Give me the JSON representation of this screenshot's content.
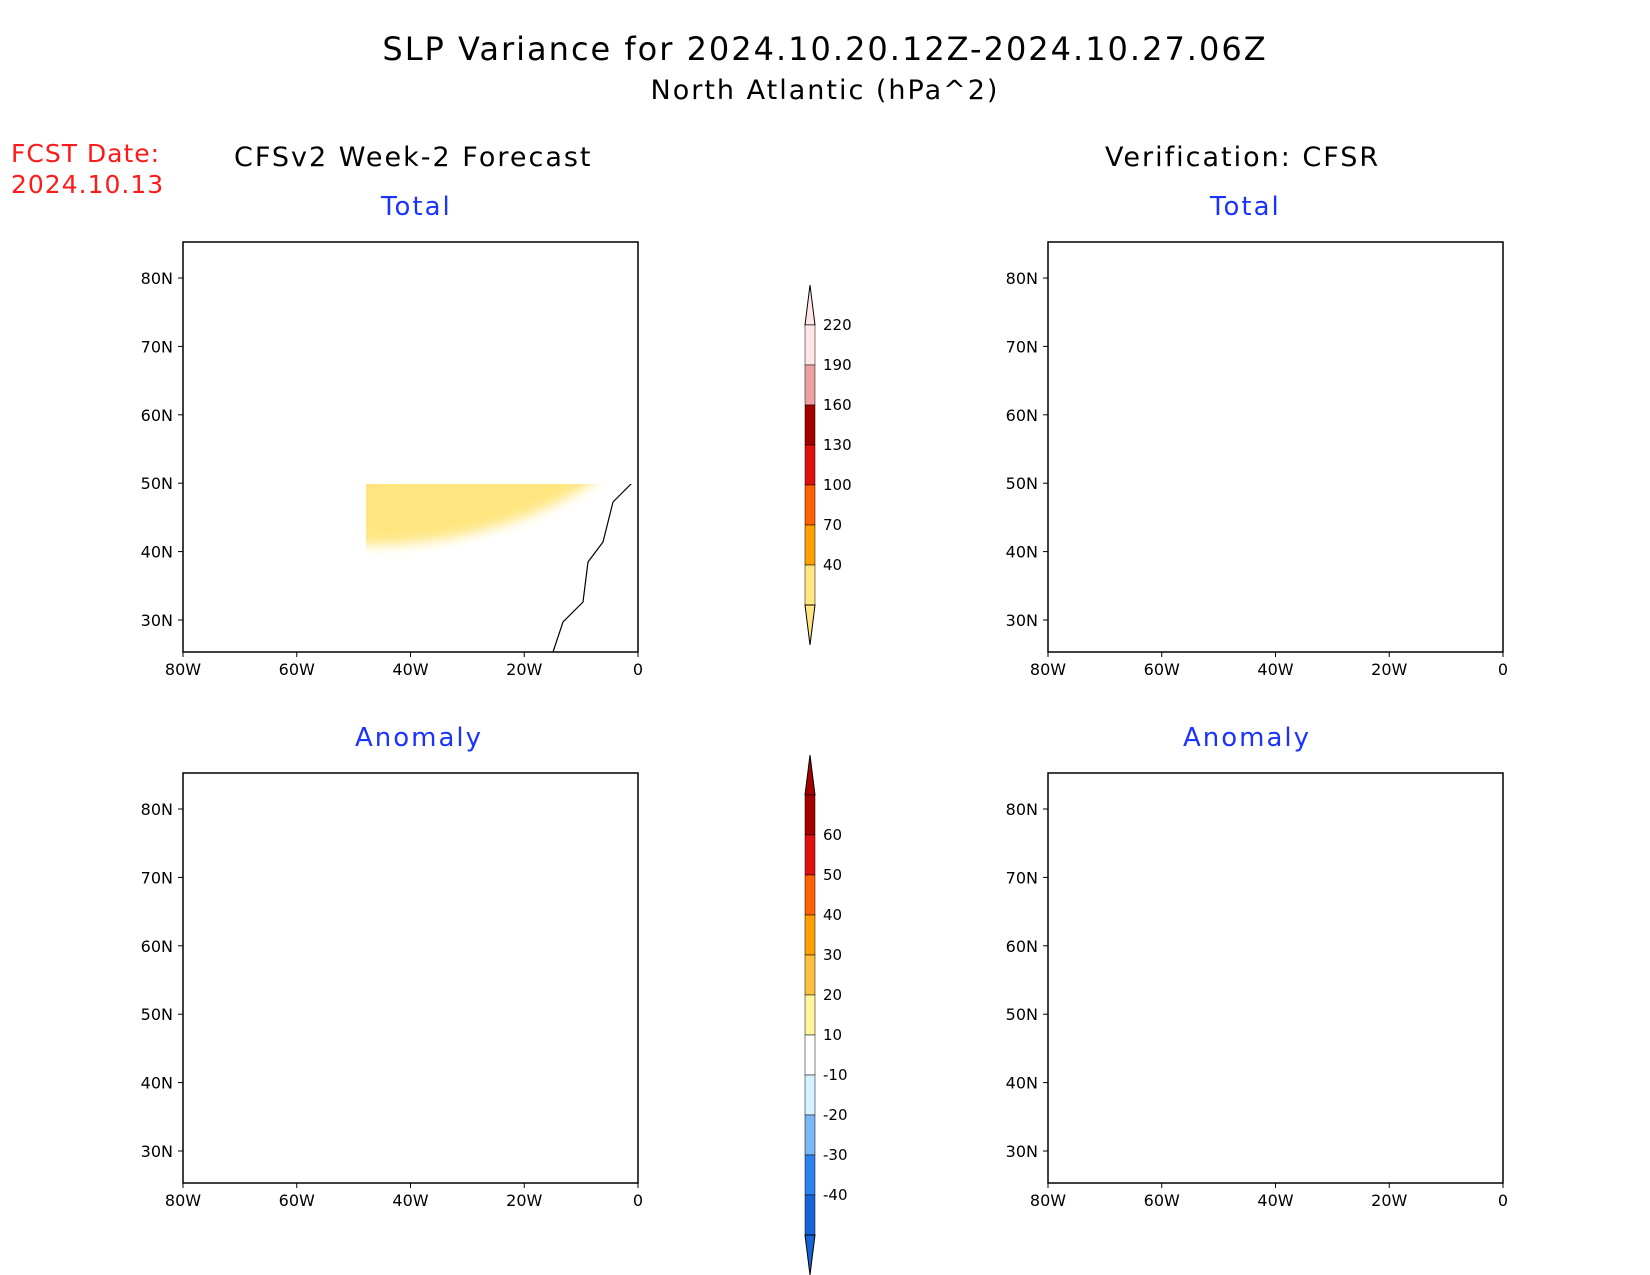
{
  "header": {
    "title_line1": "SLP Variance for 2024.10.20.12Z-2024.10.27.06Z",
    "title_line2": "North Atlantic (hPa^2)",
    "fcst_label": "FCST Date:",
    "fcst_date": "2024.10.13",
    "left_column_title": "CFSv2 Week-2 Forecast",
    "right_column_title": "Verification: CFSR"
  },
  "panels": {
    "top_left_label": "Total",
    "top_right_label": "Total",
    "bottom_left_label": "Anomaly",
    "bottom_right_label": "Anomaly"
  },
  "axes": {
    "lon_ticks": [
      "80W",
      "60W",
      "40W",
      "20W",
      "0"
    ],
    "lat_ticks": [
      "30N",
      "40N",
      "50N",
      "60N",
      "70N",
      "80N"
    ]
  },
  "colorbars": {
    "total": {
      "levels": [
        "40",
        "70",
        "100",
        "130",
        "160",
        "190",
        "220"
      ],
      "colors": [
        "#ffe680",
        "#ffa000",
        "#ff6000",
        "#e01010",
        "#a50000",
        "#f0a0a0",
        "#ffe6e6"
      ]
    },
    "anomaly": {
      "levels": [
        "-40",
        "-30",
        "-20",
        "-10",
        "10",
        "20",
        "30",
        "40",
        "50",
        "60"
      ],
      "colors": [
        "#1565d8",
        "#2c82f0",
        "#7ab8f5",
        "#d6f3ff",
        "#ffffff",
        "#fff5a0",
        "#ffc040",
        "#ffa000",
        "#ff6000",
        "#e01010",
        "#a50000"
      ]
    }
  },
  "map_colors": {
    "yellow": "#ffe680",
    "orange": "#ffa000",
    "dark_orange": "#ff6000",
    "red": "#e01010",
    "dark_red": "#a50000",
    "pink": "#f0a0a0",
    "light_pink": "#ffe6e6",
    "light_yellow": "#fff5a0",
    "light_orange": "#ffc040",
    "pale_blue": "#d6f3ff",
    "light_blue": "#7ab8f5",
    "mid_blue": "#2c82f0",
    "dark_blue": "#1565d8"
  }
}
